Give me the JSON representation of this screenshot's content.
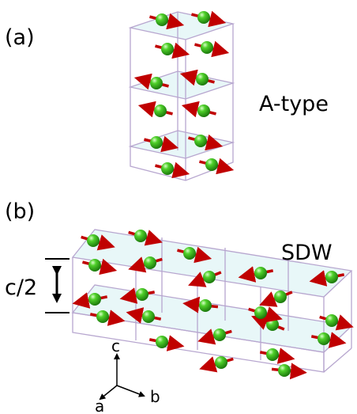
{
  "labels": {
    "panel_a": "(a)",
    "panel_a_name": "A-type",
    "panel_b": "(b)",
    "panel_b_name": "SDW",
    "half_c": "c/2",
    "axis_c": "c",
    "axis_a": "a",
    "axis_b": "b"
  }
}
